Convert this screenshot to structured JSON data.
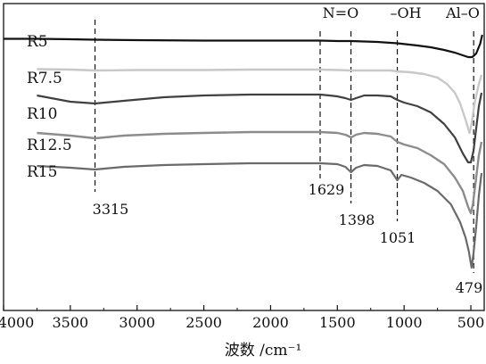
{
  "chart_data": {
    "type": "line",
    "xlabel": "波数 /cm⁻¹",
    "xlim": [
      4000,
      400
    ],
    "x_reversed": true,
    "x_ticks": [
      4000,
      3500,
      3000,
      2500,
      2000,
      1500,
      1000,
      500
    ],
    "series": [
      {
        "name": "R5",
        "color": "#111111",
        "width": 2.2,
        "points": [
          [
            4000,
            39.5
          ],
          [
            3750,
            39.5
          ],
          [
            3500,
            40
          ],
          [
            3315,
            40.5
          ],
          [
            3000,
            41
          ],
          [
            2500,
            41.5
          ],
          [
            2150,
            41.5
          ],
          [
            2000,
            41.5
          ],
          [
            1700,
            41.5
          ],
          [
            1629,
            41.5
          ],
          [
            1500,
            42
          ],
          [
            1398,
            42
          ],
          [
            1200,
            43
          ],
          [
            1051,
            44.5
          ],
          [
            900,
            47
          ],
          [
            800,
            49
          ],
          [
            700,
            52
          ],
          [
            620,
            55
          ],
          [
            560,
            58
          ],
          [
            520,
            60
          ],
          [
            490,
            60
          ],
          [
            460,
            56
          ],
          [
            430,
            45
          ],
          [
            415,
            35
          ]
        ]
      },
      {
        "name": "R7.5",
        "color": "#c8c8c8",
        "width": 2.4,
        "points": [
          [
            3750,
            73.5
          ],
          [
            3500,
            74
          ],
          [
            3315,
            75
          ],
          [
            3000,
            74.5
          ],
          [
            2500,
            74.5
          ],
          [
            2150,
            74
          ],
          [
            2000,
            74
          ],
          [
            1700,
            74
          ],
          [
            1629,
            74
          ],
          [
            1500,
            74.5
          ],
          [
            1398,
            75
          ],
          [
            1200,
            75
          ],
          [
            1100,
            75
          ],
          [
            1051,
            76
          ],
          [
            950,
            77
          ],
          [
            850,
            79
          ],
          [
            750,
            83
          ],
          [
            680,
            90
          ],
          [
            620,
            100
          ],
          [
            580,
            112
          ],
          [
            540,
            130
          ],
          [
            510,
            145
          ],
          [
            495,
            135
          ],
          [
            470,
            110
          ],
          [
            440,
            90
          ],
          [
            420,
            80
          ]
        ]
      },
      {
        "name": "R10",
        "color": "#404040",
        "width": 2.2,
        "points": [
          [
            3750,
            103
          ],
          [
            3500,
            110
          ],
          [
            3315,
            112
          ],
          [
            3100,
            109
          ],
          [
            2800,
            105
          ],
          [
            2500,
            103
          ],
          [
            2150,
            102
          ],
          [
            2000,
            102
          ],
          [
            1700,
            102
          ],
          [
            1629,
            102
          ],
          [
            1560,
            103
          ],
          [
            1500,
            104
          ],
          [
            1440,
            106
          ],
          [
            1398,
            108
          ],
          [
            1360,
            106
          ],
          [
            1300,
            103
          ],
          [
            1200,
            103
          ],
          [
            1100,
            104
          ],
          [
            1051,
            108
          ],
          [
            1000,
            111
          ],
          [
            900,
            115
          ],
          [
            800,
            122
          ],
          [
            700,
            135
          ],
          [
            620,
            150
          ],
          [
            560,
            168
          ],
          [
            520,
            178
          ],
          [
            500,
            178
          ],
          [
            480,
            165
          ],
          [
            460,
            140
          ],
          [
            440,
            115
          ],
          [
            420,
            100
          ]
        ]
      },
      {
        "name": "R12.5",
        "color": "#8c8c8c",
        "width": 2.4,
        "points": [
          [
            3750,
            145
          ],
          [
            3500,
            148
          ],
          [
            3315,
            151
          ],
          [
            3100,
            148
          ],
          [
            2800,
            146
          ],
          [
            2500,
            145
          ],
          [
            2150,
            144
          ],
          [
            2000,
            144
          ],
          [
            1700,
            144
          ],
          [
            1629,
            144
          ],
          [
            1500,
            145
          ],
          [
            1440,
            147
          ],
          [
            1398,
            150
          ],
          [
            1360,
            147
          ],
          [
            1300,
            145
          ],
          [
            1200,
            146
          ],
          [
            1100,
            149
          ],
          [
            1051,
            155
          ],
          [
            1000,
            158
          ],
          [
            900,
            162
          ],
          [
            800,
            170
          ],
          [
            700,
            180
          ],
          [
            620,
            195
          ],
          [
            560,
            210
          ],
          [
            520,
            228
          ],
          [
            500,
            235
          ],
          [
            485,
            225
          ],
          [
            460,
            195
          ],
          [
            440,
            170
          ],
          [
            420,
            155
          ]
        ]
      },
      {
        "name": "R15",
        "color": "#6a6a6a",
        "width": 2.2,
        "points": [
          [
            3750,
            182
          ],
          [
            3500,
            184
          ],
          [
            3315,
            186
          ],
          [
            3100,
            183
          ],
          [
            2800,
            181
          ],
          [
            2500,
            180
          ],
          [
            2150,
            179
          ],
          [
            2000,
            179
          ],
          [
            1700,
            179
          ],
          [
            1629,
            179
          ],
          [
            1500,
            180
          ],
          [
            1440,
            183
          ],
          [
            1398,
            189
          ],
          [
            1360,
            184
          ],
          [
            1300,
            181
          ],
          [
            1200,
            182
          ],
          [
            1100,
            187
          ],
          [
            1051,
            198
          ],
          [
            1020,
            192
          ],
          [
            950,
            195
          ],
          [
            850,
            201
          ],
          [
            750,
            210
          ],
          [
            650,
            225
          ],
          [
            580,
            245
          ],
          [
            540,
            262
          ],
          [
            515,
            278
          ],
          [
            495,
            296
          ],
          [
            480,
            280
          ],
          [
            460,
            250
          ],
          [
            440,
            215
          ],
          [
            420,
            190
          ]
        ]
      }
    ],
    "series_labels": [
      "R5",
      "R7.5",
      "R10",
      "R12.5",
      "R15"
    ],
    "annotations": [
      {
        "text": "N=O",
        "x": 1600,
        "position": "top"
      },
      {
        "text": "–OH",
        "x": 1051,
        "position": "top"
      },
      {
        "text": "Al–O",
        "x": 479,
        "position": "top"
      },
      {
        "text": "3315",
        "x": 3315
      },
      {
        "text": "1629",
        "x": 1629
      },
      {
        "text": "1398",
        "x": 1398
      },
      {
        "text": "1051",
        "x": 1051
      },
      {
        "text": "479",
        "x": 479
      }
    ],
    "vlines": [
      3315,
      1629,
      1398,
      1051,
      479
    ],
    "grid": false
  }
}
